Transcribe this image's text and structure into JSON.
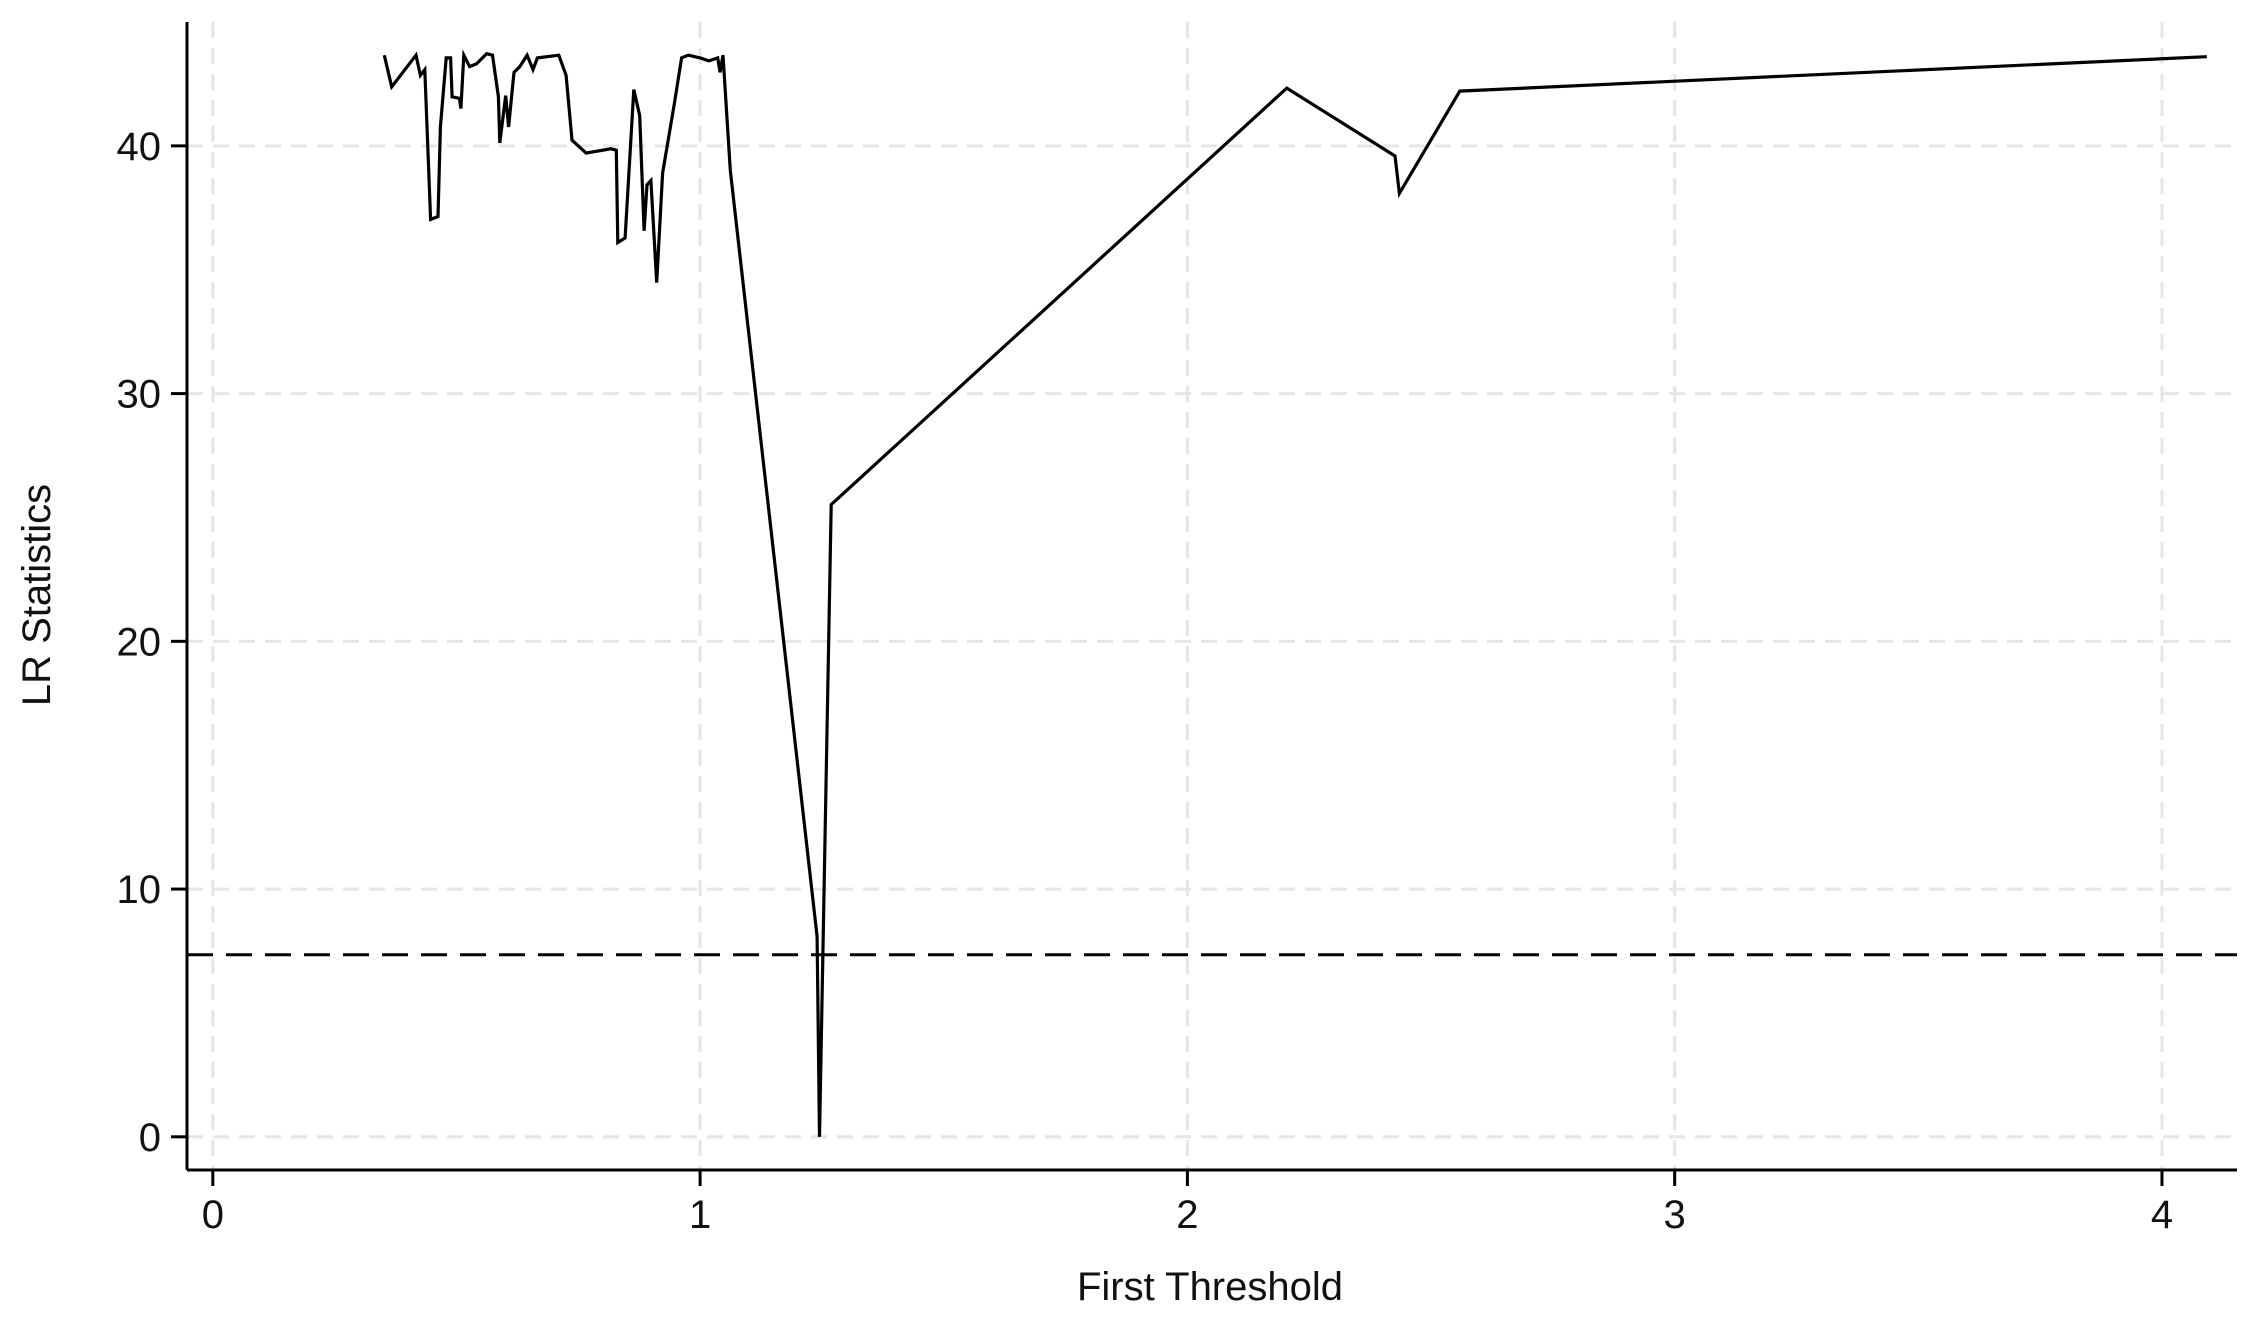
{
  "chart_data": {
    "type": "line",
    "x_label": "First Threshold",
    "y_label": "LR Statistics",
    "x": [
      0.352,
      0.367,
      0.417,
      0.426,
      0.435,
      0.447,
      0.462,
      0.467,
      0.479,
      0.488,
      0.491,
      0.506,
      0.509,
      0.515,
      0.527,
      0.541,
      0.562,
      0.574,
      0.586,
      0.589,
      0.601,
      0.607,
      0.618,
      0.63,
      0.645,
      0.657,
      0.666,
      0.71,
      0.725,
      0.737,
      0.766,
      0.817,
      0.828,
      0.831,
      0.846,
      0.864,
      0.876,
      0.885,
      0.891,
      0.899,
      0.911,
      0.923,
      0.947,
      0.962,
      0.976,
      1.0,
      1.018,
      1.036,
      1.041,
      1.047,
      1.062,
      1.24,
      1.245,
      1.269,
      2.204,
      2.426,
      2.435,
      2.559,
      4.092
    ],
    "values": [
      43.66,
      42.38,
      43.66,
      42.85,
      43.08,
      37.03,
      37.15,
      40.76,
      43.55,
      43.55,
      41.98,
      41.92,
      41.51,
      43.66,
      43.2,
      43.31,
      43.72,
      43.66,
      41.98,
      40.12,
      42.03,
      40.76,
      42.97,
      43.2,
      43.66,
      43.08,
      43.55,
      43.66,
      42.85,
      40.23,
      39.71,
      39.88,
      39.83,
      36.1,
      36.28,
      42.27,
      41.22,
      36.57,
      38.43,
      38.6,
      34.48,
      38.9,
      41.69,
      43.55,
      43.66,
      43.55,
      43.43,
      43.55,
      42.97,
      43.66,
      39.01,
      8.08,
      0,
      25.52,
      42.33,
      39.59,
      38.08,
      42.21,
      43.6
    ],
    "color": "#000000",
    "reference_line": 7.35,
    "xlim": [
      -0.053,
      4.154
    ],
    "ylim": [
      -1.34,
      45
    ],
    "xticks": [
      0,
      1,
      2,
      3,
      4
    ],
    "yticks": [
      0,
      10,
      20,
      30,
      40
    ],
    "grid": true
  }
}
